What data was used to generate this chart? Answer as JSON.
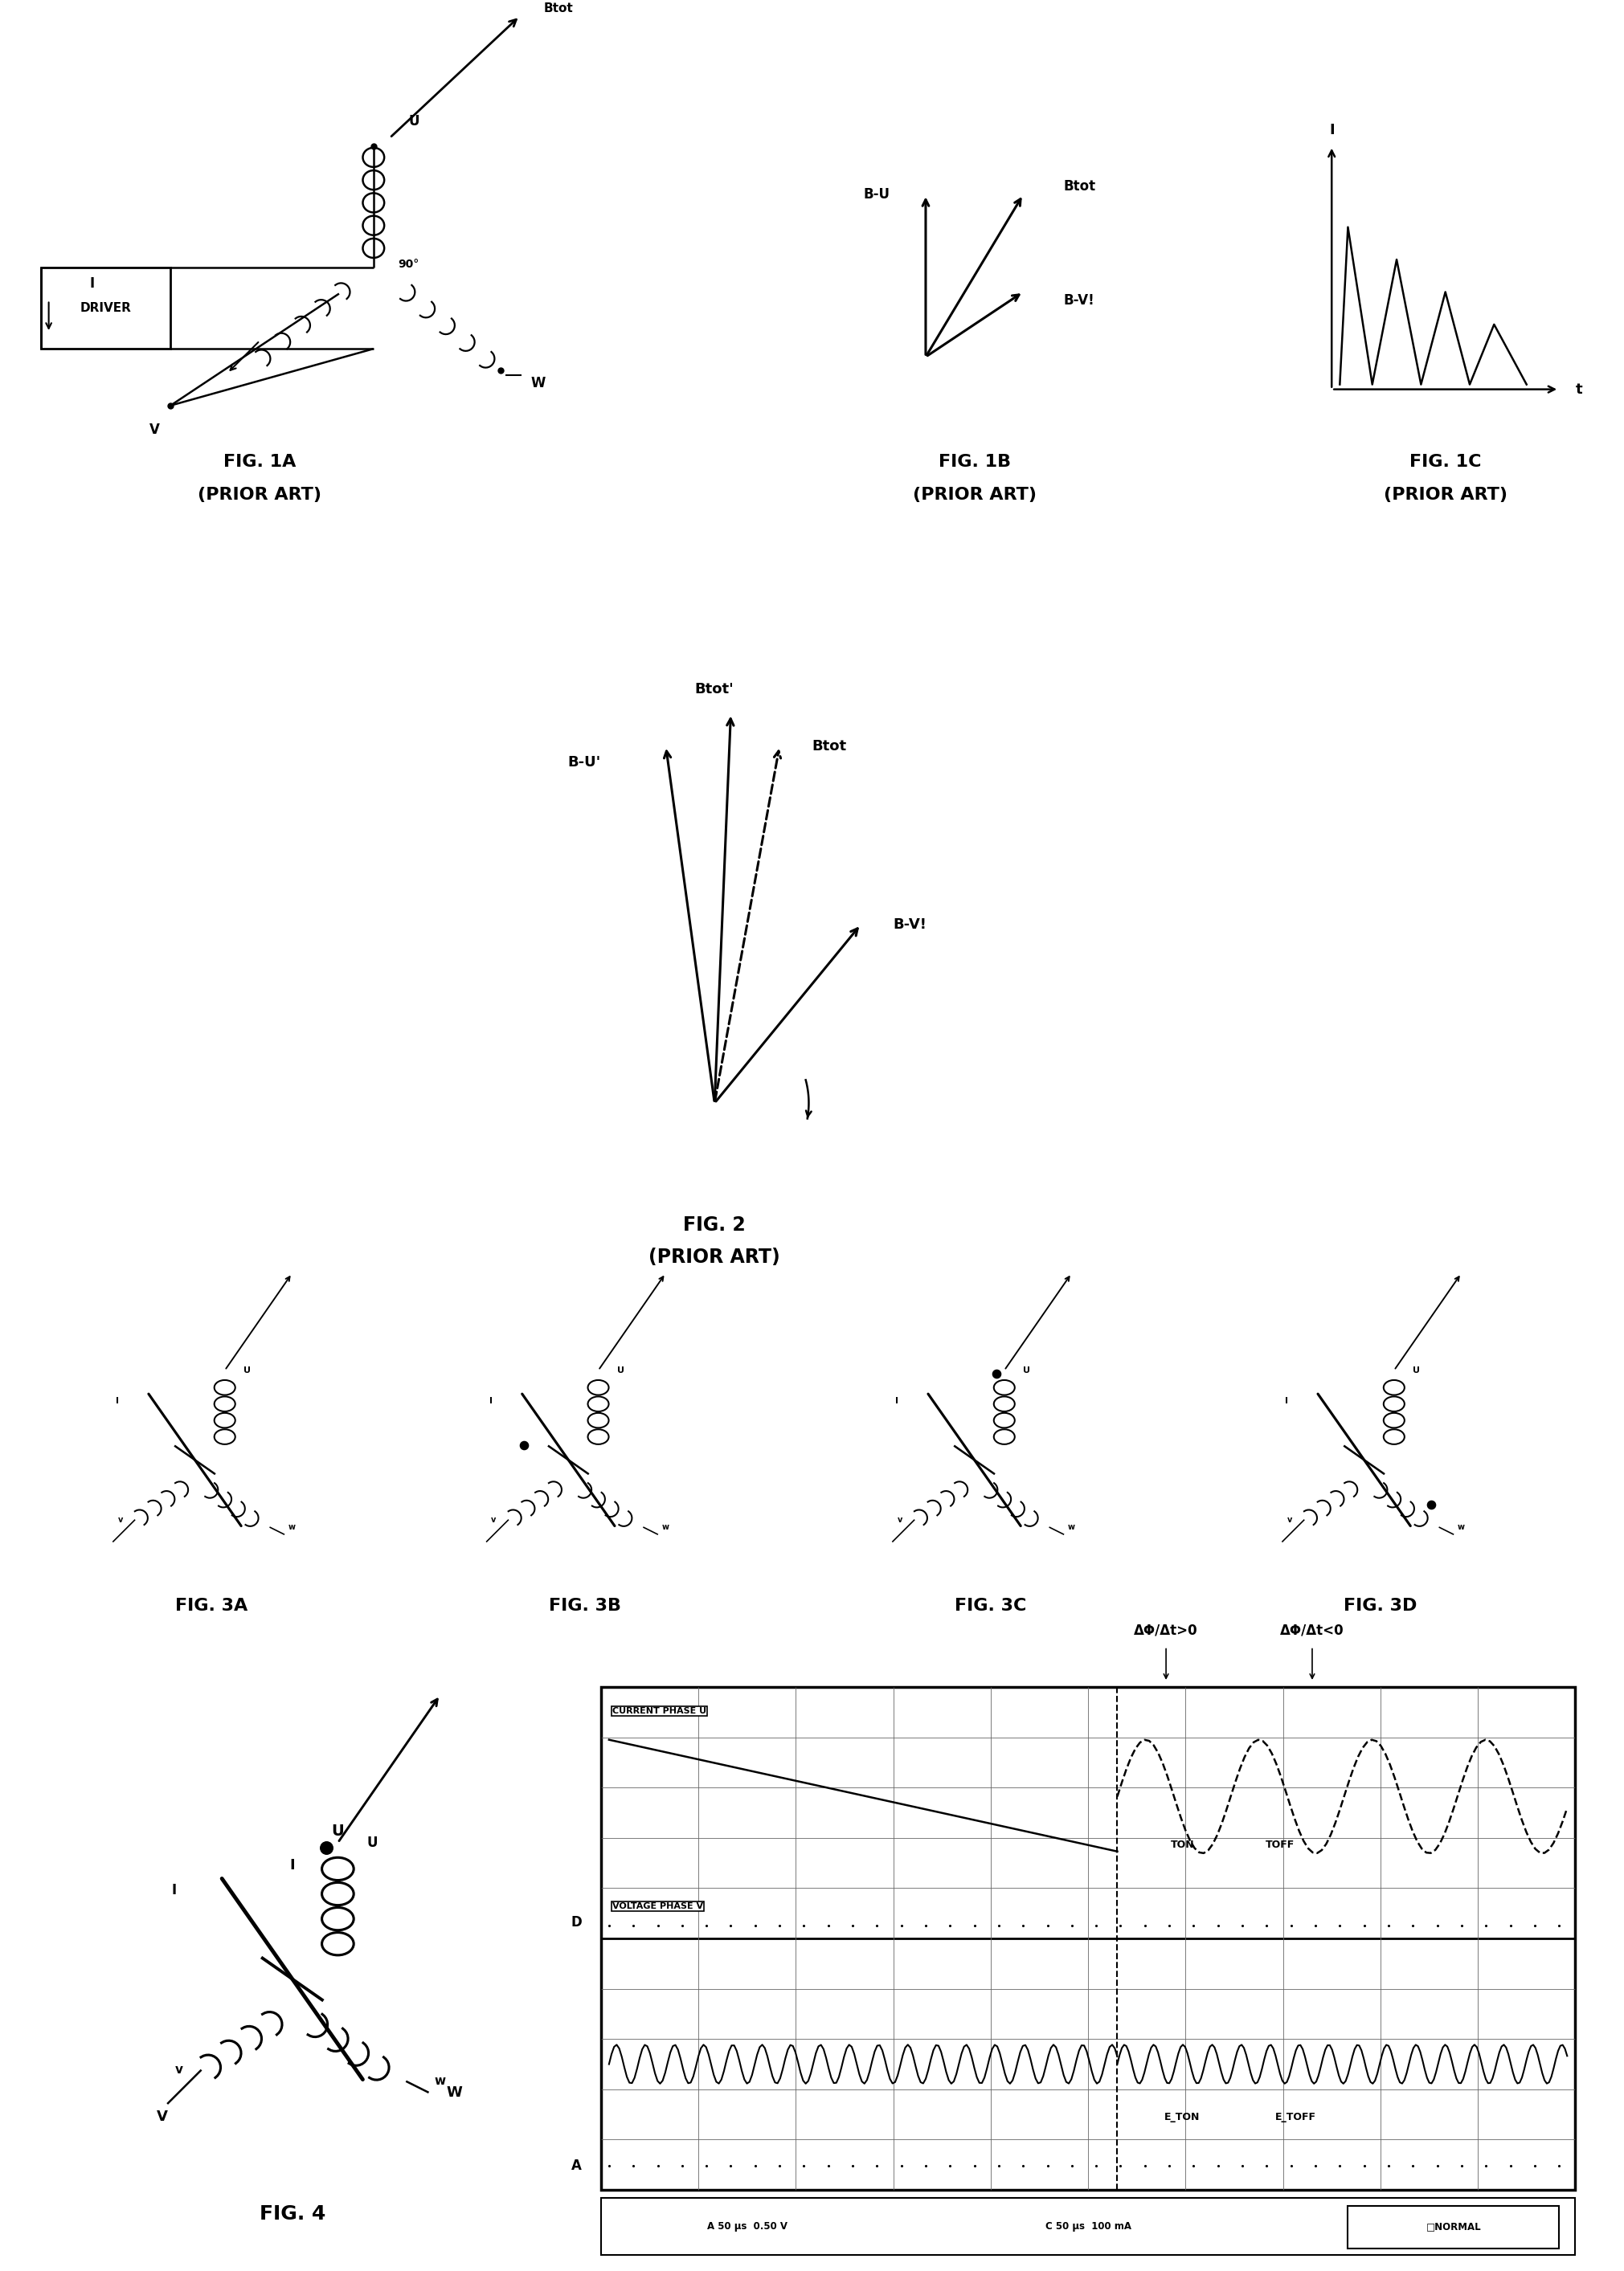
{
  "bg_color": "#ffffff",
  "fig_width": 20.21,
  "fig_height": 28.27,
  "fig1a_label": "FIG. 1A",
  "fig1a_sub": "(PRIOR ART)",
  "fig1b_label": "FIG. 1B",
  "fig1b_sub": "(PRIOR ART)",
  "fig1c_label": "FIG. 1C",
  "fig1c_sub": "(PRIOR ART)",
  "fig2_label": "FIG. 2",
  "fig2_sub": "(PRIOR ART)",
  "fig3a_label": "FIG. 3A",
  "fig3b_label": "FIG. 3B",
  "fig3c_label": "FIG. 3C",
  "fig3d_label": "FIG. 3D",
  "fig4_label": "FIG. 4",
  "osc_label1": "CURRENT PHASE U",
  "osc_label2": "VOLTAGE PHASE V",
  "osc_ton": "TON",
  "osc_toff": "TOFF",
  "osc_eton": "E_TON",
  "osc_etoff": "E_TOFF",
  "osc_d": "D",
  "osc_a": "A",
  "osc_info1": "A 50 μs  0.50 V",
  "osc_info2": "C 50 μs  100 mA",
  "osc_normal": "□NORMAL",
  "osc_dphi1": "ΔΦ/Δt>0",
  "osc_dphi2": "ΔΦ/Δt<0"
}
